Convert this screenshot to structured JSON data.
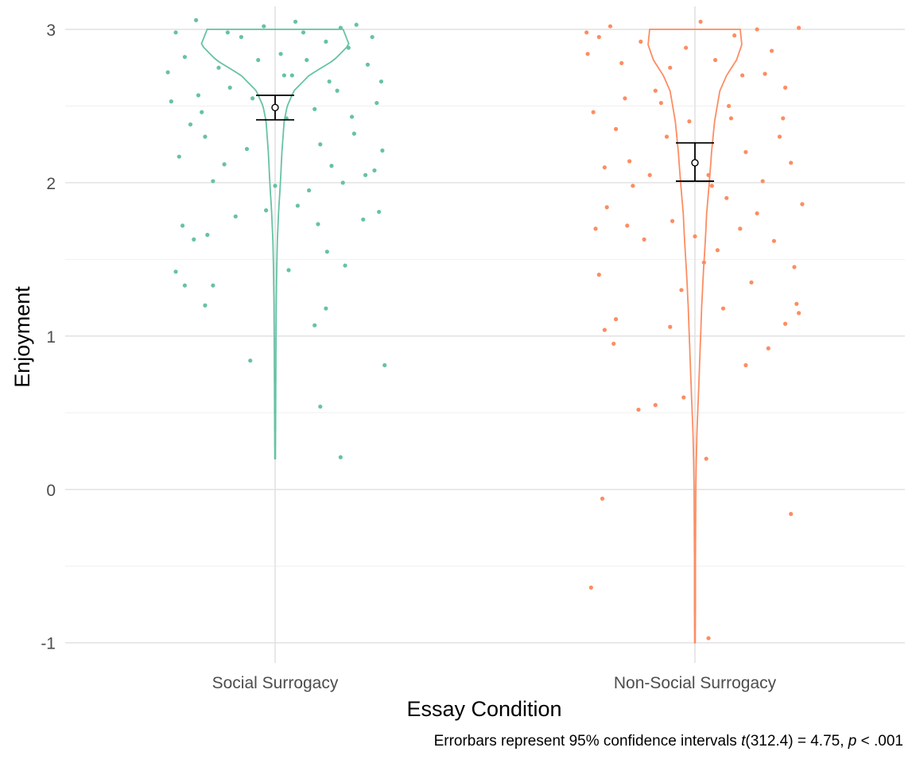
{
  "chart_data": {
    "type": "violin",
    "categories": [
      "Social Surrogacy",
      "Non-Social Surrogacy"
    ],
    "xlabel": "Essay Condition",
    "ylabel": "Enjoyment",
    "ylim": [
      -1.1,
      3.15
    ],
    "yticks": [
      "-1",
      "0",
      "1",
      "2",
      "3"
    ],
    "grid": true,
    "legend": "none",
    "colors": [
      "#66c2a5",
      "#fc8d62"
    ],
    "caption": {
      "pre": "Errorbars represent 95% confidence intervals ",
      "t": "t",
      "stat": "(312.4) = 4.75, ",
      "p": "p",
      "post": " < .001"
    },
    "series": [
      {
        "category": "Social Surrogacy",
        "mean": 2.49,
        "ci": [
          2.41,
          2.57
        ],
        "violin_range": [
          0.2,
          3.0
        ],
        "violin_profile": [
          [
            0.2,
            0.004
          ],
          [
            0.4,
            0.006
          ],
          [
            0.6,
            0.008
          ],
          [
            0.8,
            0.01
          ],
          [
            1.0,
            0.012
          ],
          [
            1.2,
            0.015
          ],
          [
            1.4,
            0.02
          ],
          [
            1.6,
            0.028
          ],
          [
            1.8,
            0.045
          ],
          [
            2.0,
            0.07
          ],
          [
            2.2,
            0.09
          ],
          [
            2.4,
            0.12
          ],
          [
            2.5,
            0.16
          ],
          [
            2.6,
            0.25
          ],
          [
            2.7,
            0.45
          ],
          [
            2.8,
            0.78
          ],
          [
            2.9,
            0.98
          ],
          [
            3.0,
            0.9
          ]
        ],
        "points": [
          [
            -0.88,
            2.98
          ],
          [
            -0.8,
            2.82
          ],
          [
            -0.7,
            3.06
          ],
          [
            -0.62,
            2.3
          ],
          [
            -0.5,
            2.75
          ],
          [
            -0.4,
            2.62
          ],
          [
            -0.3,
            2.95
          ],
          [
            -0.2,
            2.55
          ],
          [
            -0.1,
            3.02
          ],
          [
            0.05,
            2.84
          ],
          [
            0.15,
            2.7
          ],
          [
            0.25,
            2.98
          ],
          [
            0.35,
            2.48
          ],
          [
            0.45,
            2.92
          ],
          [
            0.55,
            2.6
          ],
          [
            0.65,
            2.88
          ],
          [
            0.72,
            3.03
          ],
          [
            0.82,
            2.77
          ],
          [
            0.9,
            2.52
          ],
          [
            -0.92,
            2.53
          ],
          [
            -0.85,
            2.17
          ],
          [
            -0.75,
            2.38
          ],
          [
            -0.65,
            2.46
          ],
          [
            -0.55,
            2.01
          ],
          [
            -0.45,
            2.12
          ],
          [
            -0.25,
            2.22
          ],
          [
            0.0,
            1.98
          ],
          [
            0.1,
            2.42
          ],
          [
            0.2,
            1.85
          ],
          [
            0.3,
            1.95
          ],
          [
            0.4,
            2.25
          ],
          [
            0.5,
            2.11
          ],
          [
            0.6,
            2.0
          ],
          [
            0.7,
            2.32
          ],
          [
            0.8,
            2.05
          ],
          [
            0.88,
            2.08
          ],
          [
            0.95,
            2.21
          ],
          [
            -0.82,
            1.72
          ],
          [
            -0.72,
            1.63
          ],
          [
            -0.6,
            1.66
          ],
          [
            -0.35,
            1.78
          ],
          [
            -0.08,
            1.82
          ],
          [
            0.12,
            1.43
          ],
          [
            0.38,
            1.73
          ],
          [
            0.46,
            1.55
          ],
          [
            0.62,
            1.46
          ],
          [
            0.78,
            1.76
          ],
          [
            0.92,
            1.81
          ],
          [
            -0.88,
            1.42
          ],
          [
            -0.8,
            1.33
          ],
          [
            -0.62,
            1.2
          ],
          [
            -0.55,
            1.33
          ],
          [
            0.35,
            1.07
          ],
          [
            0.45,
            1.18
          ],
          [
            -0.22,
            0.84
          ],
          [
            0.4,
            0.54
          ],
          [
            0.58,
            0.21
          ],
          [
            0.97,
            0.81
          ],
          [
            -0.95,
            2.72
          ],
          [
            -0.68,
            2.57
          ],
          [
            -0.42,
            2.98
          ],
          [
            -0.15,
            2.8
          ],
          [
            0.08,
            2.7
          ],
          [
            0.18,
            3.05
          ],
          [
            0.28,
            2.8
          ],
          [
            0.48,
            2.66
          ],
          [
            0.58,
            3.01
          ],
          [
            0.68,
            2.43
          ],
          [
            0.86,
            2.95
          ],
          [
            0.94,
            2.66
          ]
        ]
      },
      {
        "category": "Non-Social Surrogacy",
        "mean": 2.13,
        "ci": [
          2.01,
          2.26
        ],
        "violin_range": [
          -1.0,
          3.0
        ],
        "violin_profile": [
          [
            -1.0,
            0.004
          ],
          [
            -0.8,
            0.006
          ],
          [
            -0.6,
            0.006
          ],
          [
            -0.4,
            0.007
          ],
          [
            -0.2,
            0.009
          ],
          [
            0.0,
            0.012
          ],
          [
            0.2,
            0.018
          ],
          [
            0.4,
            0.028
          ],
          [
            0.6,
            0.045
          ],
          [
            0.8,
            0.06
          ],
          [
            1.0,
            0.075
          ],
          [
            1.2,
            0.09
          ],
          [
            1.4,
            0.11
          ],
          [
            1.6,
            0.135
          ],
          [
            1.8,
            0.155
          ],
          [
            2.0,
            0.19
          ],
          [
            2.2,
            0.22
          ],
          [
            2.4,
            0.26
          ],
          [
            2.6,
            0.33
          ],
          [
            2.7,
            0.42
          ],
          [
            2.8,
            0.55
          ],
          [
            2.9,
            0.62
          ],
          [
            3.0,
            0.6
          ]
        ],
        "points": [
          [
            -0.95,
            2.84
          ],
          [
            -0.85,
            2.95
          ],
          [
            -0.75,
            3.02
          ],
          [
            -0.62,
            2.55
          ],
          [
            -0.48,
            2.92
          ],
          [
            -0.35,
            2.6
          ],
          [
            -0.22,
            2.75
          ],
          [
            -0.08,
            2.88
          ],
          [
            0.05,
            3.05
          ],
          [
            0.18,
            2.8
          ],
          [
            0.3,
            2.5
          ],
          [
            0.42,
            2.7
          ],
          [
            0.55,
            3.0
          ],
          [
            0.68,
            2.86
          ],
          [
            0.8,
            2.62
          ],
          [
            0.92,
            3.01
          ],
          [
            -0.9,
            2.46
          ],
          [
            -0.8,
            2.1
          ],
          [
            -0.7,
            2.35
          ],
          [
            -0.55,
            1.98
          ],
          [
            -0.4,
            2.05
          ],
          [
            -0.25,
            2.3
          ],
          [
            -0.05,
            2.4
          ],
          [
            0.12,
            2.05
          ],
          [
            0.28,
            1.9
          ],
          [
            0.45,
            2.2
          ],
          [
            0.6,
            2.01
          ],
          [
            0.75,
            2.3
          ],
          [
            0.85,
            2.13
          ],
          [
            0.95,
            1.86
          ],
          [
            -0.88,
            1.7
          ],
          [
            -0.78,
            1.84
          ],
          [
            -0.6,
            1.72
          ],
          [
            -0.45,
            1.63
          ],
          [
            -0.2,
            1.75
          ],
          [
            0.0,
            1.65
          ],
          [
            0.2,
            1.56
          ],
          [
            0.4,
            1.7
          ],
          [
            0.55,
            1.8
          ],
          [
            0.7,
            1.62
          ],
          [
            0.88,
            1.45
          ],
          [
            -0.85,
            1.4
          ],
          [
            -0.7,
            1.11
          ],
          [
            -0.5,
            0.52
          ],
          [
            -0.35,
            0.55
          ],
          [
            -0.22,
            1.06
          ],
          [
            -0.1,
            0.6
          ],
          [
            0.08,
            1.48
          ],
          [
            0.25,
            1.18
          ],
          [
            0.45,
            0.81
          ],
          [
            0.65,
            0.92
          ],
          [
            0.8,
            1.08
          ],
          [
            0.92,
            1.15
          ],
          [
            -0.82,
            -0.06
          ],
          [
            0.1,
            0.2
          ],
          [
            0.85,
            -0.16
          ],
          [
            -0.92,
            -0.64
          ],
          [
            0.12,
            -0.97
          ],
          [
            -0.8,
            1.04
          ],
          [
            -0.72,
            0.95
          ],
          [
            -0.12,
            1.3
          ],
          [
            0.5,
            1.35
          ],
          [
            0.9,
            1.21
          ],
          [
            -0.96,
            2.98
          ],
          [
            -0.65,
            2.78
          ],
          [
            -0.3,
            2.52
          ],
          [
            0.35,
            2.96
          ],
          [
            0.62,
            2.71
          ],
          [
            0.78,
            2.42
          ],
          [
            -0.58,
            2.14
          ],
          [
            0.15,
            1.98
          ],
          [
            0.32,
            2.42
          ]
        ]
      }
    ]
  }
}
